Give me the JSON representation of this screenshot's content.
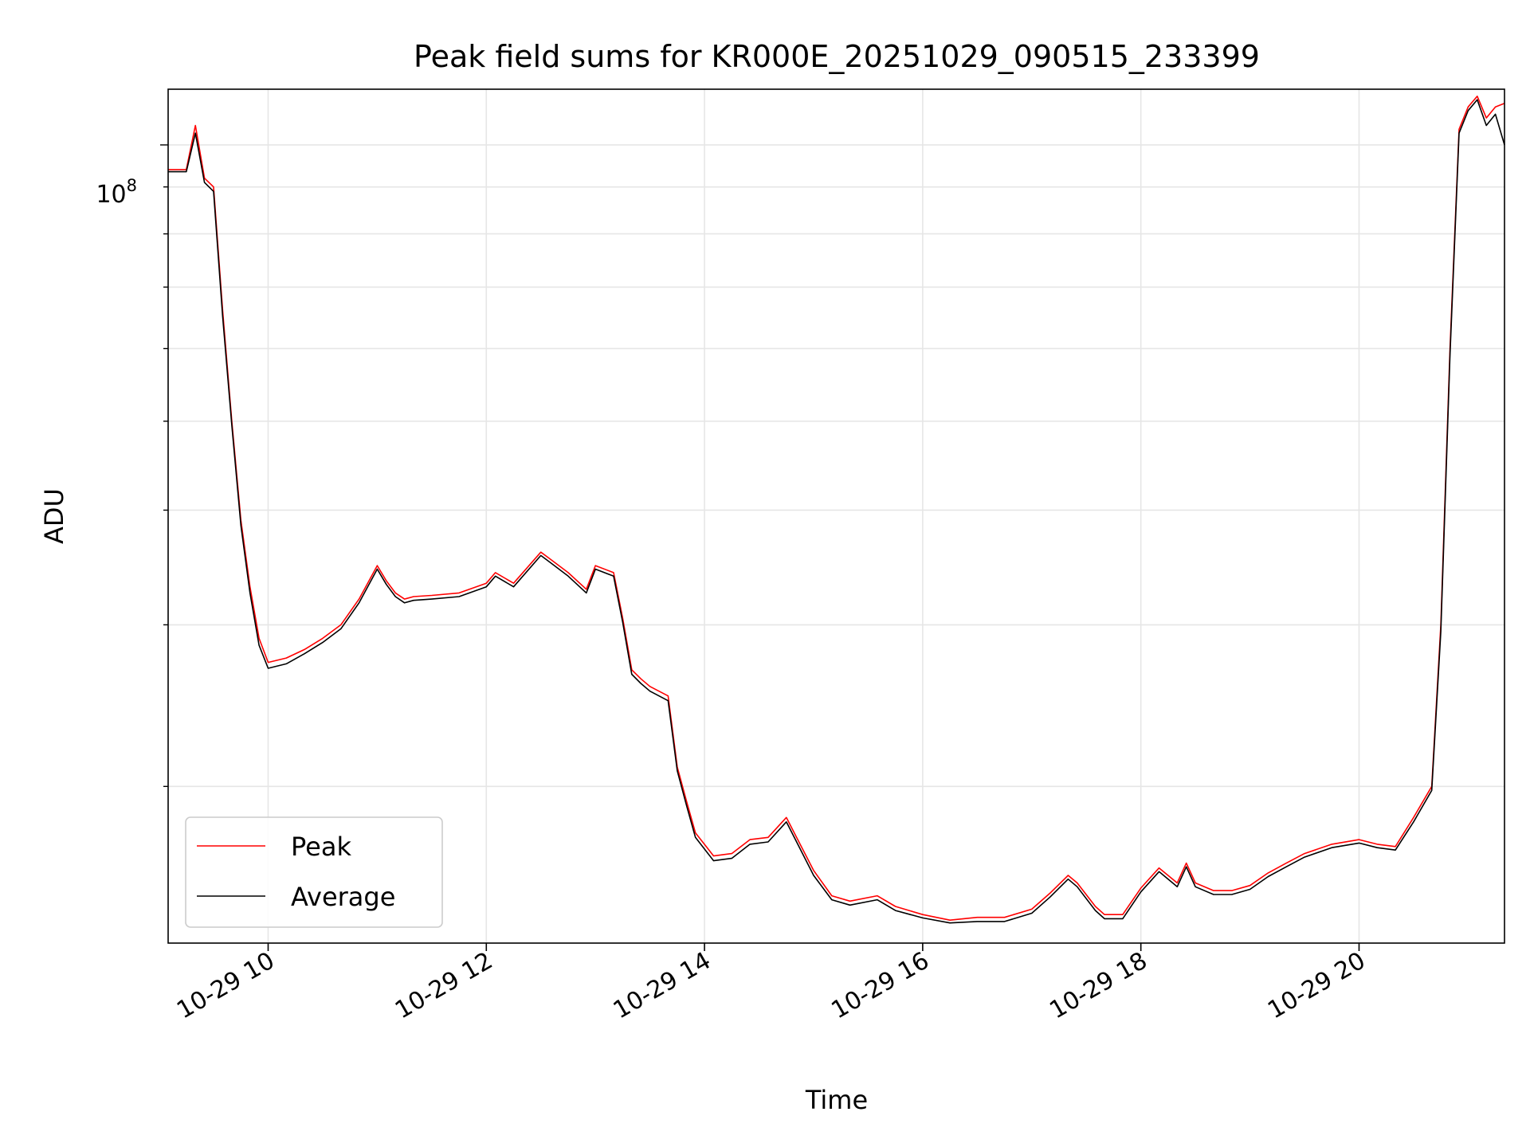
{
  "chart_data": {
    "type": "line",
    "title": "Peak field sums for KR000E_20251029_090515_233399",
    "xlabel": "Time",
    "ylabel": "ADU",
    "yscale": "log",
    "xlim": [
      "2025-10-29 09:05",
      "2025-10-29 21:20"
    ],
    "ylim": [
      13500000,
      115000000
    ],
    "x_ticks": [
      "10-29 10",
      "10-29 12",
      "10-29 14",
      "10-29 16",
      "10-29 18",
      "10-29 20"
    ],
    "y_tick_label": {
      "base": "10",
      "exponent": "8"
    },
    "grid": true,
    "legend_position": "lower left",
    "series": [
      {
        "name": "Peak",
        "color": "#ff0000",
        "x": [
          "09:05",
          "09:10",
          "09:15",
          "09:20",
          "09:25",
          "09:30",
          "09:35",
          "09:40",
          "09:45",
          "09:50",
          "09:55",
          "10:00",
          "10:10",
          "10:20",
          "10:30",
          "10:40",
          "10:50",
          "11:00",
          "11:05",
          "11:10",
          "11:15",
          "11:20",
          "11:30",
          "11:45",
          "12:00",
          "12:05",
          "12:15",
          "12:30",
          "12:35",
          "12:45",
          "12:55",
          "13:00",
          "13:10",
          "13:15",
          "13:20",
          "13:25",
          "13:30",
          "13:40",
          "13:45",
          "13:50",
          "13:55",
          "14:05",
          "14:15",
          "14:25",
          "14:35",
          "14:45",
          "14:50",
          "15:00",
          "15:10",
          "15:20",
          "15:35",
          "15:45",
          "16:00",
          "16:15",
          "16:30",
          "16:45",
          "17:00",
          "17:10",
          "17:20",
          "17:25",
          "17:35",
          "17:40",
          "17:50",
          "18:00",
          "18:10",
          "18:20",
          "18:25",
          "18:30",
          "18:40",
          "18:50",
          "19:00",
          "19:10",
          "19:20",
          "19:30",
          "19:45",
          "20:00",
          "20:10",
          "20:20",
          "20:30",
          "20:40",
          "20:45",
          "20:50",
          "20:55",
          "21:00",
          "21:05",
          "21:10",
          "21:15",
          "21:20"
        ],
        "values": [
          94000000,
          94000000,
          94000000,
          105000000,
          92000000,
          90000000,
          66000000,
          50000000,
          39000000,
          33000000,
          29000000,
          27300000,
          27600000,
          28200000,
          29000000,
          30000000,
          32000000,
          34800000,
          33500000,
          32500000,
          32000000,
          32200000,
          32300000,
          32500000,
          33300000,
          34200000,
          33300000,
          36000000,
          35400000,
          34200000,
          32800000,
          34800000,
          34200000,
          30500000,
          26800000,
          26200000,
          25700000,
          25100000,
          21000000,
          19300000,
          17800000,
          16800000,
          16900000,
          17500000,
          17600000,
          18500000,
          17700000,
          16200000,
          15200000,
          15000000,
          15200000,
          14800000,
          14500000,
          14300000,
          14400000,
          14400000,
          14700000,
          15300000,
          16000000,
          15700000,
          14800000,
          14500000,
          14500000,
          15500000,
          16300000,
          15700000,
          16500000,
          15700000,
          15400000,
          15400000,
          15600000,
          16100000,
          16500000,
          16900000,
          17300000,
          17500000,
          17300000,
          17200000,
          18500000,
          20000000,
          30000000,
          60000000,
          104000000,
          110000000,
          113000000,
          107000000,
          110000000,
          111000000
        ]
      },
      {
        "name": "Average",
        "color": "#000000",
        "x": [
          "09:05",
          "09:10",
          "09:15",
          "09:20",
          "09:25",
          "09:30",
          "09:35",
          "09:40",
          "09:45",
          "09:50",
          "09:55",
          "10:00",
          "10:10",
          "10:20",
          "10:30",
          "10:40",
          "10:50",
          "11:00",
          "11:05",
          "11:10",
          "11:15",
          "11:20",
          "11:30",
          "11:45",
          "12:00",
          "12:05",
          "12:15",
          "12:30",
          "12:35",
          "12:45",
          "12:55",
          "13:00",
          "13:10",
          "13:15",
          "13:20",
          "13:25",
          "13:30",
          "13:40",
          "13:45",
          "13:50",
          "13:55",
          "14:05",
          "14:15",
          "14:25",
          "14:35",
          "14:45",
          "14:50",
          "15:00",
          "15:10",
          "15:20",
          "15:35",
          "15:45",
          "16:00",
          "16:15",
          "16:30",
          "16:45",
          "17:00",
          "17:10",
          "17:20",
          "17:25",
          "17:35",
          "17:40",
          "17:50",
          "18:00",
          "18:10",
          "18:20",
          "18:25",
          "18:30",
          "18:40",
          "18:50",
          "19:00",
          "19:10",
          "19:20",
          "19:30",
          "19:45",
          "20:00",
          "20:10",
          "20:20",
          "20:30",
          "20:40",
          "20:45",
          "20:50",
          "20:55",
          "21:00",
          "21:05",
          "21:10",
          "21:15",
          "21:20"
        ],
        "values": [
          93500000,
          93500000,
          93500000,
          103000000,
          91000000,
          89000000,
          65000000,
          49500000,
          38500000,
          32500000,
          28500000,
          26900000,
          27200000,
          27900000,
          28700000,
          29700000,
          31700000,
          34500000,
          33200000,
          32200000,
          31700000,
          31900000,
          32000000,
          32200000,
          33000000,
          33900000,
          33000000,
          35700000,
          35100000,
          33900000,
          32500000,
          34500000,
          33900000,
          30200000,
          26500000,
          25900000,
          25400000,
          24800000,
          20800000,
          19100000,
          17600000,
          16600000,
          16700000,
          17300000,
          17400000,
          18300000,
          17500000,
          16000000,
          15050000,
          14850000,
          15050000,
          14650000,
          14380000,
          14200000,
          14250000,
          14250000,
          14550000,
          15150000,
          15850000,
          15550000,
          14650000,
          14350000,
          14350000,
          15350000,
          16150000,
          15550000,
          16350000,
          15550000,
          15250000,
          15250000,
          15450000,
          15950000,
          16350000,
          16750000,
          17150000,
          17350000,
          17150000,
          17050000,
          18300000,
          19800000,
          29500000,
          59000000,
          103000000,
          109000000,
          112000000,
          105000000,
          108000000,
          100000000
        ]
      }
    ]
  }
}
